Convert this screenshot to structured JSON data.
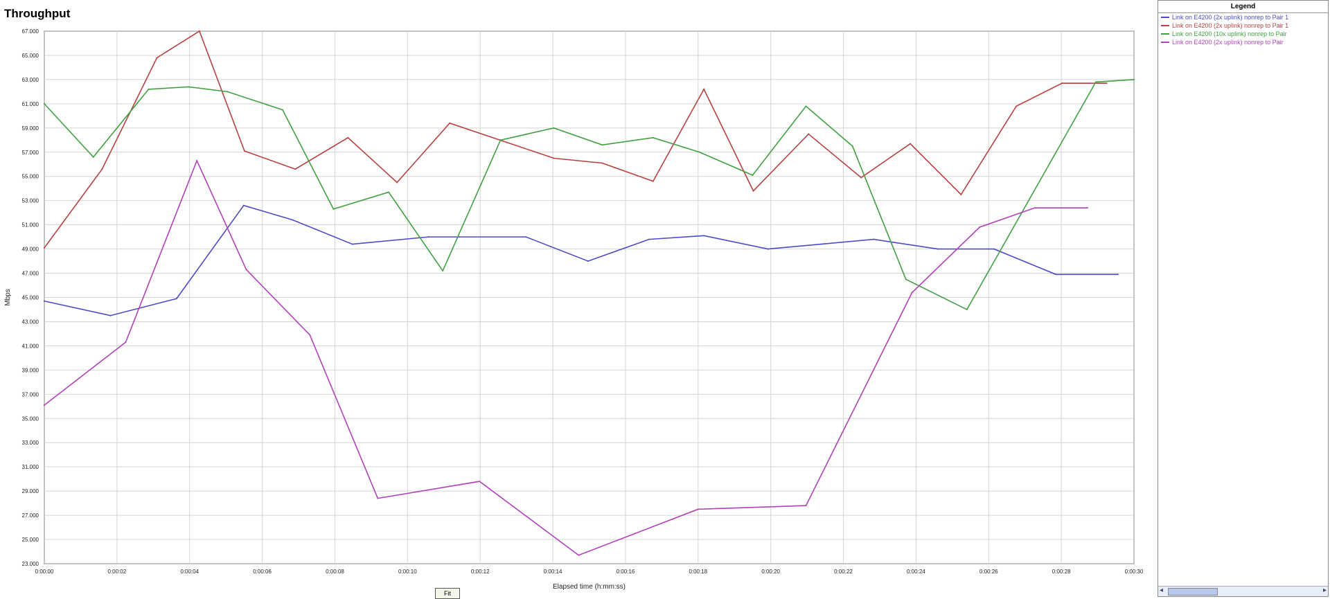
{
  "chart_data": {
    "type": "line",
    "title": "Throughput",
    "xlabel": "Elapsed time (h:mm:ss)",
    "ylabel": "Mbps",
    "xlim": [
      0,
      30
    ],
    "ylim": [
      23,
      67
    ],
    "grid": true,
    "legend_placement": "right",
    "legend_title": "Legend",
    "x_ticks": [
      0,
      2,
      4,
      6,
      8,
      10,
      12,
      14,
      16,
      18,
      20,
      22,
      24,
      26,
      28,
      30
    ],
    "x_tick_labels": [
      "0:00:00",
      "0:00:02",
      "0:00:04",
      "0:00:06",
      "0:00:08",
      "0:00:10",
      "0:00:12",
      "0:00:14",
      "0:00:16",
      "0:00:18",
      "0:00:20",
      "0:00:22",
      "0:00:24",
      "0:00:26",
      "0:00:28",
      "0:00:30"
    ],
    "y_ticks": [
      67,
      65,
      63,
      61,
      59,
      57,
      55,
      53,
      51,
      49,
      47,
      45,
      43,
      41,
      39,
      37,
      35,
      33,
      31,
      29,
      27,
      25,
      23
    ],
    "y_tick_labels": [
      "67.000",
      "65.000",
      "63.000",
      "61.000",
      "59.000",
      "57.000",
      "55.000",
      "53.000",
      "51.000",
      "49.000",
      "47.000",
      "45.000",
      "43.000",
      "41.000",
      "39.000",
      "37.000",
      "35.000",
      "33.000",
      "31.000",
      "29.000",
      "27.000",
      "25.000",
      "23.000"
    ],
    "series": [
      {
        "name": "Link on E4200 (2x uplink) nonrep to Pair 1",
        "color": "#4a4ac8",
        "x": [
          0,
          1.82,
          3.64,
          5.49,
          6.84,
          8.48,
          10.58,
          13.26,
          14.97,
          16.65,
          18.16,
          19.92,
          22.84,
          24.6,
          26.15,
          27.85,
          29.56
        ],
        "y": [
          44.7,
          43.5,
          44.9,
          52.6,
          51.4,
          49.4,
          50.0,
          50.0,
          48.0,
          49.8,
          50.1,
          49.0,
          49.8,
          49.0,
          49.0,
          46.9,
          46.9
        ]
      },
      {
        "name": "Link on E4200 (2x uplink) nonrep to Pair 1",
        "color": "#b84040",
        "x": [
          0,
          1.59,
          3.1,
          4.27,
          5.51,
          6.91,
          8.36,
          9.71,
          11.16,
          14.03,
          15.36,
          16.76,
          18.16,
          19.52,
          21.04,
          22.49,
          23.84,
          25.24,
          26.76,
          28.02,
          29.25
        ],
        "y": [
          49.1,
          55.6,
          64.8,
          67.0,
          57.1,
          55.6,
          58.2,
          54.5,
          59.4,
          56.5,
          56.1,
          54.6,
          62.2,
          53.8,
          58.5,
          54.9,
          57.7,
          53.5,
          60.8,
          62.7,
          62.7
        ]
      },
      {
        "name": "Link on E4200 (10x uplink) nonrep to Pair",
        "color": "#40a040",
        "x": [
          0,
          1.35,
          2.87,
          3.97,
          5.04,
          6.56,
          7.96,
          9.48,
          10.97,
          12.56,
          14.03,
          15.36,
          16.76,
          18.04,
          19.5,
          20.97,
          22.25,
          23.72,
          25.4,
          28.95,
          30
        ],
        "y": [
          61.0,
          56.6,
          62.2,
          62.4,
          62.0,
          60.5,
          52.3,
          53.7,
          47.2,
          58.0,
          59.0,
          57.6,
          58.2,
          57.0,
          55.1,
          60.8,
          57.5,
          46.5,
          44.0,
          62.8,
          63.0
        ]
      },
      {
        "name": "Link on E4200 (2x uplink) nonrep to Pair",
        "color": "#b040b8",
        "x": [
          0,
          2.24,
          4.2,
          5.56,
          7.31,
          9.18,
          11.98,
          14.71,
          18.0,
          20.97,
          23.89,
          25.75,
          27.27,
          28.72
        ],
        "y": [
          36.1,
          41.3,
          56.3,
          47.3,
          41.9,
          28.4,
          29.8,
          23.7,
          27.5,
          27.8,
          45.4,
          50.8,
          52.4,
          52.4
        ]
      }
    ]
  },
  "controls": {
    "fit_label": "Fit"
  }
}
